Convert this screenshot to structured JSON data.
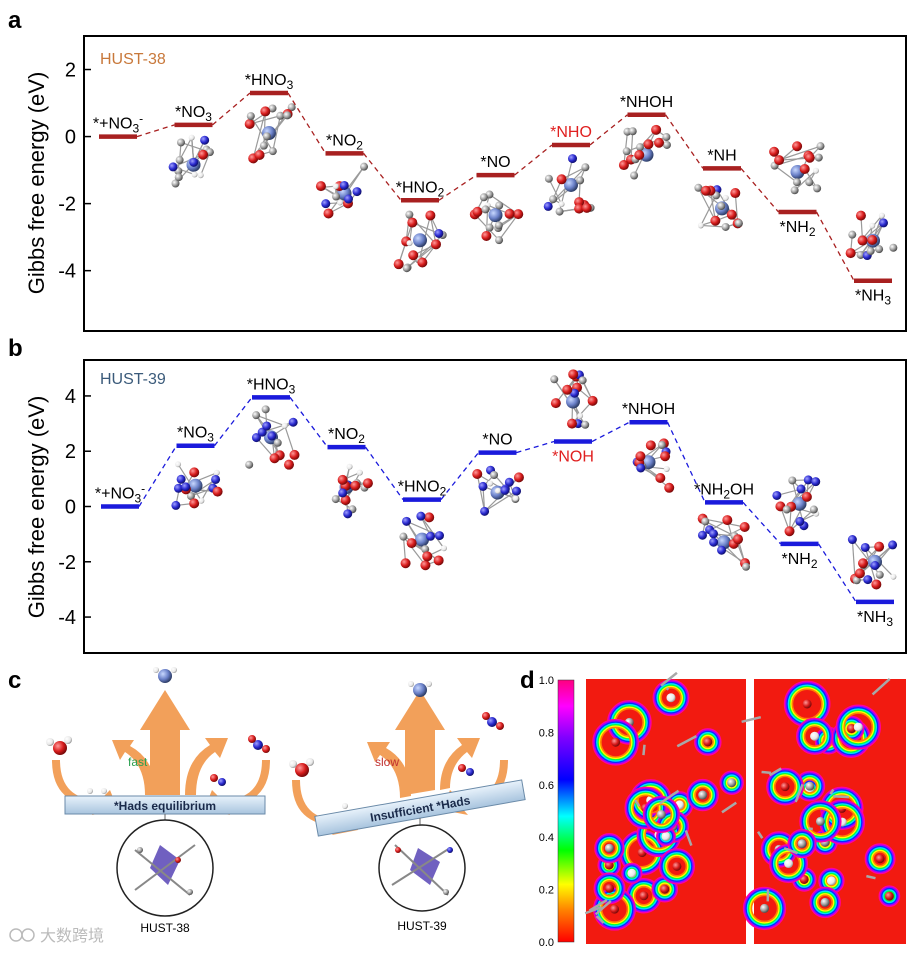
{
  "panels": {
    "a": "a",
    "b": "b",
    "c": "c",
    "d": "d"
  },
  "watermark": "大数跨境",
  "chart_data": [
    {
      "type": "line",
      "title": "HUST-38",
      "ylabel": "Gibbs free energy (eV)",
      "ylim": [
        -5.8,
        3.0
      ],
      "yticks": [
        "2",
        "0",
        "-2",
        "-4"
      ],
      "ytick_values": [
        2,
        0,
        -2,
        -4
      ],
      "steps": [
        {
          "label": "*+NO3-",
          "value": 0.0,
          "lab_pos": "above"
        },
        {
          "label": "*NO3",
          "value": 0.35,
          "lab_pos": "above"
        },
        {
          "label": "*HNO3",
          "value": 1.3,
          "lab_pos": "above"
        },
        {
          "label": "*NO2",
          "value": -0.5,
          "lab_pos": "above"
        },
        {
          "label": "*HNO2",
          "value": -1.9,
          "lab_pos": "above"
        },
        {
          "label": "*NO",
          "value": -1.15,
          "lab_pos": "above"
        },
        {
          "label": "*NHO",
          "value": -0.25,
          "lab_pos": "above",
          "highlight": true
        },
        {
          "label": "*NHOH",
          "value": 0.65,
          "lab_pos": "above"
        },
        {
          "label": "*NH",
          "value": -0.95,
          "lab_pos": "above"
        },
        {
          "label": "*NH2",
          "value": -2.25,
          "lab_pos": "below"
        },
        {
          "label": "*NH3",
          "value": -4.3,
          "lab_pos": "below"
        }
      ]
    },
    {
      "type": "line",
      "title": "HUST-39",
      "ylabel": "Gibbs free energy (eV)",
      "ylim": [
        -5.3,
        5.3
      ],
      "yticks": [
        "4",
        "2",
        "0",
        "-2",
        "-4"
      ],
      "ytick_values": [
        4,
        2,
        0,
        -2,
        -4
      ],
      "steps": [
        {
          "label": "*+NO3-",
          "value": 0.0,
          "lab_pos": "above"
        },
        {
          "label": "*NO3",
          "value": 2.2,
          "lab_pos": "above"
        },
        {
          "label": "*HNO3",
          "value": 3.95,
          "lab_pos": "above"
        },
        {
          "label": "*NO2",
          "value": 2.15,
          "lab_pos": "above"
        },
        {
          "label": "*HNO2",
          "value": 0.25,
          "lab_pos": "above"
        },
        {
          "label": "*NO",
          "value": 1.95,
          "lab_pos": "above"
        },
        {
          "label": "*NOH",
          "value": 2.35,
          "lab_pos": "below",
          "highlight": true
        },
        {
          "label": "*NHOH",
          "value": 3.05,
          "lab_pos": "above"
        },
        {
          "label": "*NH2OH",
          "value": 0.15,
          "lab_pos": "above"
        },
        {
          "label": "*NH2",
          "value": -1.35,
          "lab_pos": "below"
        },
        {
          "label": "*NH3",
          "value": -3.45,
          "lab_pos": "below"
        }
      ]
    },
    {
      "type": "heatmap",
      "title": "",
      "colorbar_ticks": [
        "1.0",
        "0.8",
        "0.6",
        "0.4",
        "0.2",
        "0.0"
      ],
      "colorbar_values": [
        1.0,
        0.8,
        0.6,
        0.4,
        0.2,
        0.0
      ],
      "vrange": [
        0.0,
        1.0
      ]
    }
  ],
  "schematic": {
    "left": {
      "speed": "fast",
      "bar": "*Hads equilibrium",
      "mof": "HUST-38"
    },
    "right": {
      "speed": "slow",
      "bar": "Insufficient *Hads",
      "mof": "HUST-39"
    }
  },
  "colors": {
    "hust38": "#a82020",
    "hust39": "#1a1adc",
    "hust38_title": "#c8783a",
    "hust39_title": "#3a5a7a",
    "highlight": "#e02020",
    "fast": "#2aa050",
    "slow": "#c03030",
    "arrow": "#f2a05a"
  }
}
